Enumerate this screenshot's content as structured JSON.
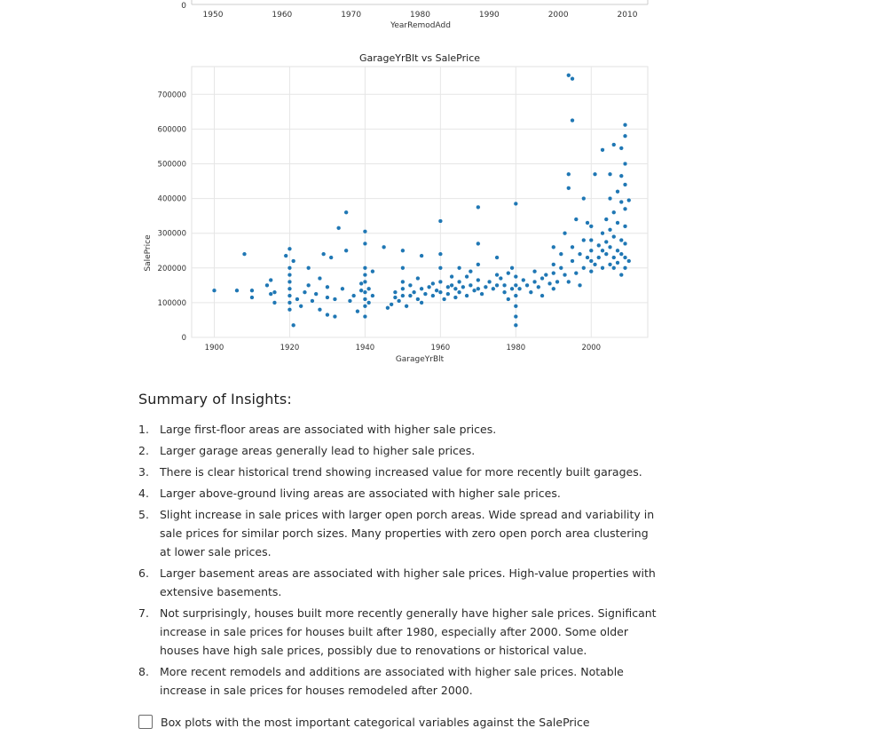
{
  "top_axis": {
    "zero_tick": "0",
    "ticks": [
      "1950",
      "1960",
      "1970",
      "1980",
      "1990",
      "2000",
      "2010"
    ],
    "xlabel": "YearRemodAdd"
  },
  "chart_data": {
    "type": "scatter",
    "title": "GarageYrBlt vs SalePrice",
    "xlabel": "GarageYrBlt",
    "ylabel": "SalePrice",
    "xlim": [
      1894,
      2015
    ],
    "ylim": [
      0,
      780000
    ],
    "xticks": [
      1900,
      1920,
      1940,
      1960,
      1980,
      2000
    ],
    "yticks": [
      0,
      100000,
      200000,
      300000,
      400000,
      500000,
      600000,
      700000
    ],
    "grid": true,
    "point_color": "#1f77b4",
    "points": [
      [
        1900,
        135000
      ],
      [
        1906,
        135000
      ],
      [
        1908,
        240000
      ],
      [
        1910,
        115000
      ],
      [
        1910,
        135000
      ],
      [
        1914,
        150000
      ],
      [
        1915,
        125000
      ],
      [
        1915,
        165000
      ],
      [
        1916,
        100000
      ],
      [
        1916,
        130000
      ],
      [
        1919,
        235000
      ],
      [
        1920,
        80000
      ],
      [
        1920,
        100000
      ],
      [
        1920,
        120000
      ],
      [
        1920,
        140000
      ],
      [
        1920,
        160000
      ],
      [
        1920,
        180000
      ],
      [
        1920,
        200000
      ],
      [
        1920,
        255000
      ],
      [
        1921,
        35000
      ],
      [
        1921,
        220000
      ],
      [
        1922,
        110000
      ],
      [
        1923,
        90000
      ],
      [
        1924,
        130000
      ],
      [
        1925,
        150000
      ],
      [
        1925,
        200000
      ],
      [
        1926,
        105000
      ],
      [
        1927,
        125000
      ],
      [
        1928,
        170000
      ],
      [
        1928,
        80000
      ],
      [
        1929,
        240000
      ],
      [
        1930,
        145000
      ],
      [
        1930,
        115000
      ],
      [
        1930,
        65000
      ],
      [
        1931,
        230000
      ],
      [
        1932,
        60000
      ],
      [
        1932,
        110000
      ],
      [
        1933,
        315000
      ],
      [
        1934,
        140000
      ],
      [
        1935,
        250000
      ],
      [
        1935,
        360000
      ],
      [
        1936,
        105000
      ],
      [
        1937,
        120000
      ],
      [
        1938,
        75000
      ],
      [
        1939,
        135000
      ],
      [
        1939,
        155000
      ],
      [
        1940,
        60000
      ],
      [
        1940,
        90000
      ],
      [
        1940,
        110000
      ],
      [
        1940,
        130000
      ],
      [
        1940,
        160000
      ],
      [
        1940,
        180000
      ],
      [
        1940,
        200000
      ],
      [
        1940,
        270000
      ],
      [
        1940,
        305000
      ],
      [
        1941,
        140000
      ],
      [
        1941,
        100000
      ],
      [
        1942,
        190000
      ],
      [
        1942,
        120000
      ],
      [
        1945,
        260000
      ],
      [
        1946,
        85000
      ],
      [
        1947,
        95000
      ],
      [
        1948,
        115000
      ],
      [
        1948,
        130000
      ],
      [
        1949,
        105000
      ],
      [
        1950,
        120000
      ],
      [
        1950,
        140000
      ],
      [
        1950,
        160000
      ],
      [
        1950,
        200000
      ],
      [
        1950,
        250000
      ],
      [
        1951,
        90000
      ],
      [
        1952,
        120000
      ],
      [
        1952,
        150000
      ],
      [
        1953,
        130000
      ],
      [
        1954,
        110000
      ],
      [
        1954,
        170000
      ],
      [
        1955,
        140000
      ],
      [
        1955,
        100000
      ],
      [
        1955,
        235000
      ],
      [
        1956,
        125000
      ],
      [
        1957,
        145000
      ],
      [
        1958,
        155000
      ],
      [
        1958,
        120000
      ],
      [
        1959,
        135000
      ],
      [
        1960,
        130000
      ],
      [
        1960,
        160000
      ],
      [
        1960,
        200000
      ],
      [
        1960,
        240000
      ],
      [
        1960,
        335000
      ],
      [
        1961,
        110000
      ],
      [
        1962,
        125000
      ],
      [
        1962,
        145000
      ],
      [
        1963,
        150000
      ],
      [
        1963,
        175000
      ],
      [
        1964,
        140000
      ],
      [
        1964,
        115000
      ],
      [
        1965,
        130000
      ],
      [
        1965,
        160000
      ],
      [
        1965,
        200000
      ],
      [
        1966,
        145000
      ],
      [
        1967,
        120000
      ],
      [
        1967,
        175000
      ],
      [
        1968,
        150000
      ],
      [
        1968,
        190000
      ],
      [
        1969,
        135000
      ],
      [
        1970,
        140000
      ],
      [
        1970,
        165000
      ],
      [
        1970,
        210000
      ],
      [
        1970,
        270000
      ],
      [
        1970,
        375000
      ],
      [
        1971,
        125000
      ],
      [
        1972,
        145000
      ],
      [
        1973,
        160000
      ],
      [
        1974,
        140000
      ],
      [
        1975,
        150000
      ],
      [
        1975,
        180000
      ],
      [
        1975,
        230000
      ],
      [
        1976,
        170000
      ],
      [
        1977,
        150000
      ],
      [
        1977,
        130000
      ],
      [
        1978,
        185000
      ],
      [
        1978,
        110000
      ],
      [
        1979,
        200000
      ],
      [
        1979,
        140000
      ],
      [
        1980,
        35000
      ],
      [
        1980,
        60000
      ],
      [
        1980,
        90000
      ],
      [
        1980,
        120000
      ],
      [
        1980,
        150000
      ],
      [
        1980,
        175000
      ],
      [
        1980,
        385000
      ],
      [
        1981,
        140000
      ],
      [
        1982,
        165000
      ],
      [
        1983,
        150000
      ],
      [
        1984,
        130000
      ],
      [
        1985,
        160000
      ],
      [
        1985,
        190000
      ],
      [
        1986,
        145000
      ],
      [
        1987,
        170000
      ],
      [
        1987,
        120000
      ],
      [
        1988,
        180000
      ],
      [
        1989,
        155000
      ],
      [
        1990,
        140000
      ],
      [
        1990,
        185000
      ],
      [
        1990,
        210000
      ],
      [
        1990,
        260000
      ],
      [
        1991,
        160000
      ],
      [
        1992,
        200000
      ],
      [
        1992,
        240000
      ],
      [
        1993,
        180000
      ],
      [
        1993,
        300000
      ],
      [
        1994,
        160000
      ],
      [
        1994,
        755000
      ],
      [
        1995,
        745000
      ],
      [
        1995,
        220000
      ],
      [
        1995,
        625000
      ],
      [
        1995,
        260000
      ],
      [
        1996,
        185000
      ],
      [
        1996,
        340000
      ],
      [
        1997,
        240000
      ],
      [
        1997,
        150000
      ],
      [
        1998,
        200000
      ],
      [
        1998,
        280000
      ],
      [
        1998,
        400000
      ],
      [
        1999,
        230000
      ],
      [
        1999,
        330000
      ],
      [
        2000,
        190000
      ],
      [
        2000,
        220000
      ],
      [
        2000,
        250000
      ],
      [
        2000,
        280000
      ],
      [
        2000,
        320000
      ],
      [
        2001,
        210000
      ],
      [
        2001,
        470000
      ],
      [
        2002,
        230000
      ],
      [
        2002,
        265000
      ],
      [
        2003,
        200000
      ],
      [
        2003,
        250000
      ],
      [
        2003,
        300000
      ],
      [
        2004,
        240000
      ],
      [
        2004,
        275000
      ],
      [
        2004,
        340000
      ],
      [
        2005,
        210000
      ],
      [
        2005,
        260000
      ],
      [
        2005,
        310000
      ],
      [
        2005,
        400000
      ],
      [
        2006,
        200000
      ],
      [
        2006,
        230000
      ],
      [
        2006,
        290000
      ],
      [
        2006,
        360000
      ],
      [
        2006,
        555000
      ],
      [
        2007,
        215000
      ],
      [
        2007,
        250000
      ],
      [
        2007,
        330000
      ],
      [
        2007,
        420000
      ],
      [
        2008,
        180000
      ],
      [
        2008,
        240000
      ],
      [
        2008,
        280000
      ],
      [
        2008,
        390000
      ],
      [
        2008,
        465000
      ],
      [
        2008,
        545000
      ],
      [
        2009,
        200000
      ],
      [
        2009,
        230000
      ],
      [
        2009,
        270000
      ],
      [
        2009,
        320000
      ],
      [
        2009,
        370000
      ],
      [
        2009,
        440000
      ],
      [
        2009,
        500000
      ],
      [
        2009,
        580000
      ],
      [
        2009,
        612000
      ],
      [
        2010,
        220000
      ],
      [
        2010,
        395000
      ],
      [
        1994,
        430000
      ],
      [
        1994,
        470000
      ],
      [
        2003,
        540000
      ],
      [
        2005,
        470000
      ]
    ]
  },
  "summary": {
    "title": "Summary of Insights:",
    "items": [
      {
        "num": "1.",
        "text": "Large first-floor areas are associated with higher sale prices."
      },
      {
        "num": "2.",
        "text": "Larger garage areas generally lead to higher sale prices."
      },
      {
        "num": "3.",
        "text": "There is clear historical trend showing increased value for more recently built garages."
      },
      {
        "num": "4.",
        "text": "Larger above-ground living areas are associated with higher sale prices."
      },
      {
        "num": "5.",
        "text": "Slight increase in sale prices with larger open porch areas. Wide spread and variability in sale prices for similar porch sizes. Many properties with zero open porch area clustering at lower sale prices."
      },
      {
        "num": "6.",
        "text": "Larger basement areas are associated with higher sale prices. High-value properties with extensive basements."
      },
      {
        "num": "7.",
        "text": "Not surprisingly, houses built more recently generally have higher sale prices. Significant increase in sale prices for houses built after 1980, especially after 2000. Some older houses have high sale prices, possibly due to renovations or historical value."
      },
      {
        "num": "8.",
        "text": "More recent remodels and additions are associated with higher sale prices. Notable increase in sale prices for houses remodeled after 2000."
      }
    ]
  },
  "task": {
    "label": "Box plots with the most important categorical variables against the SalePrice",
    "checked": false
  }
}
